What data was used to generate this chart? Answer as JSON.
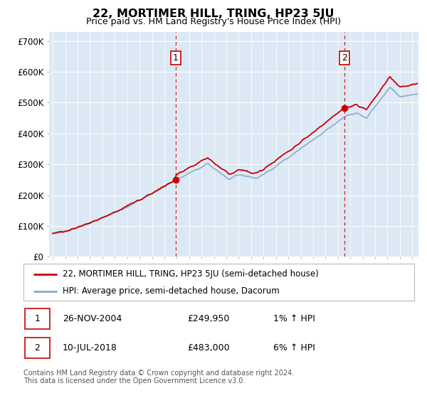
{
  "title": "22, MORTIMER HILL, TRING, HP23 5JU",
  "subtitle": "Price paid vs. HM Land Registry's House Price Index (HPI)",
  "ylabel_ticks": [
    "£0",
    "£100K",
    "£200K",
    "£300K",
    "£400K",
    "£500K",
    "£600K",
    "£700K"
  ],
  "ytick_vals": [
    0,
    100000,
    200000,
    300000,
    400000,
    500000,
    600000,
    700000
  ],
  "ylim": [
    0,
    730000
  ],
  "xlim_start": 1994.7,
  "xlim_end": 2024.5,
  "background_color": "#dce9f5",
  "grid_color": "#ffffff",
  "red_line_color": "#cc0000",
  "blue_line_color": "#88aacc",
  "marker1_x": 2004.92,
  "marker1_y": 249950,
  "marker2_x": 2018.54,
  "marker2_y": 483000,
  "legend_label1": "22, MORTIMER HILL, TRING, HP23 5JU (semi-detached house)",
  "legend_label2": "HPI: Average price, semi-detached house, Dacorum",
  "annot1_date": "26-NOV-2004",
  "annot1_price": "£249,950",
  "annot1_hpi": "1% ↑ HPI",
  "annot2_date": "10-JUL-2018",
  "annot2_price": "£483,000",
  "annot2_hpi": "6% ↑ HPI",
  "footer": "Contains HM Land Registry data © Crown copyright and database right 2024.\nThis data is licensed under the Open Government Licence v3.0."
}
